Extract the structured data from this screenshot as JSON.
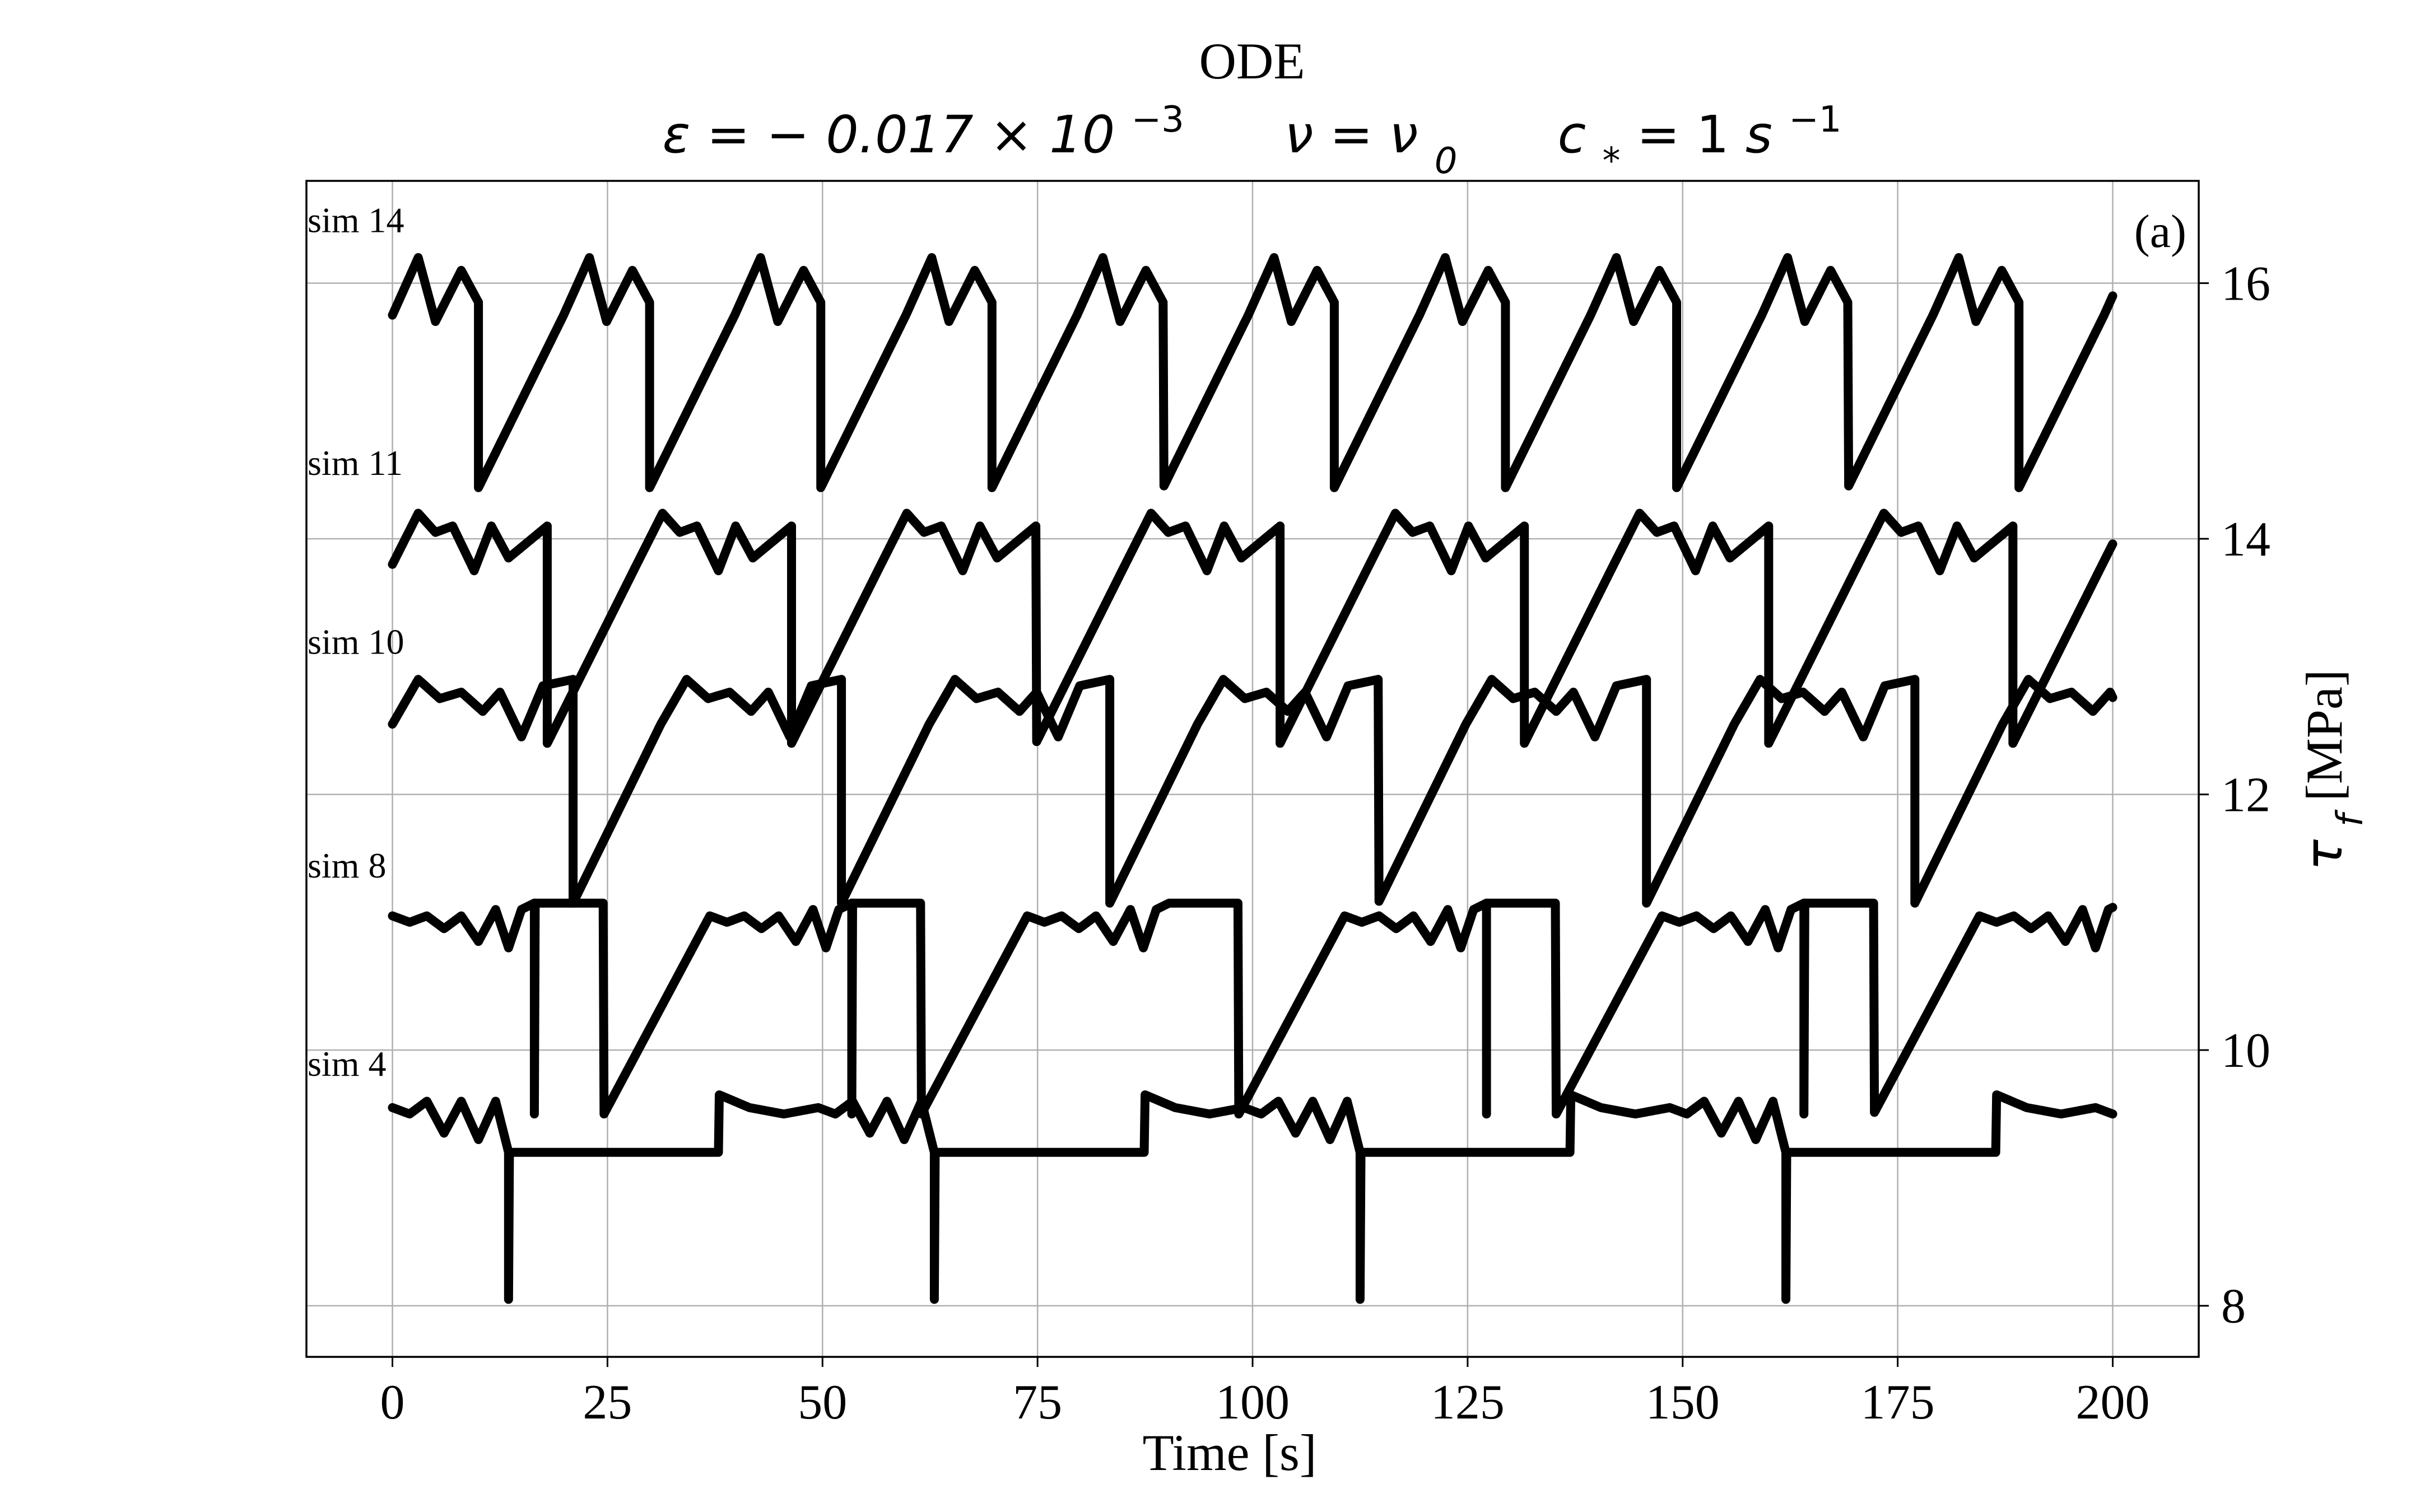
{
  "chart_data": {
    "type": "line",
    "title": "ODE",
    "subtitle": {
      "eps_main": "ε = − 0.017 × 10",
      "eps_exp": "−3",
      "nu_main": "ν = ν",
      "nu_sub": "0",
      "c_main": "c",
      "c_sub": "*",
      "c_rest": " = 1 ",
      "c_unit": "s",
      "c_exp": "−1"
    },
    "panel_label": "(a)",
    "xlabel": "Time [s]",
    "ylabel_symbol": "τ",
    "ylabel_sub": "f",
    "ylabel_unit": " [MPa]",
    "xlim": [
      -10,
      210
    ],
    "ylim": [
      7.6,
      16.8
    ],
    "xticks": [
      0,
      25,
      50,
      75,
      100,
      125,
      150,
      175,
      200
    ],
    "yticks": [
      8,
      10,
      12,
      14,
      16
    ],
    "y_axis_side": "right",
    "grid": true,
    "legend": "none",
    "line_color": "#000000",
    "series": [
      {
        "name": "sim 14",
        "period": 19.9,
        "x_start": 0,
        "x_end": 200,
        "events": [
          [
            -9.9,
            14.4
          ],
          [
            0,
            15.75
          ],
          [
            3,
            16.2
          ],
          [
            5,
            15.7
          ],
          [
            8,
            16.1
          ],
          [
            10,
            15.85
          ]
        ]
      },
      {
        "name": "sim 11",
        "period": 28.4,
        "x_start": 0,
        "x_end": 200,
        "events": [
          [
            -10.4,
            12.4
          ],
          [
            0,
            13.8
          ],
          [
            3,
            14.2
          ],
          [
            5,
            14.05
          ],
          [
            7,
            14.1
          ],
          [
            9.5,
            13.75
          ],
          [
            11.5,
            14.1
          ],
          [
            13.5,
            13.85
          ],
          [
            18,
            14.1
          ]
        ]
      },
      {
        "name": "sim 10",
        "period": 31.2,
        "x_start": 0,
        "x_end": 200,
        "events": [
          [
            -10.2,
            11.15
          ],
          [
            0,
            12.55
          ],
          [
            3,
            12.9
          ],
          [
            5.5,
            12.75
          ],
          [
            8,
            12.8
          ],
          [
            10.5,
            12.65
          ],
          [
            12.5,
            12.8
          ],
          [
            15,
            12.45
          ],
          [
            17.5,
            12.85
          ],
          [
            21,
            12.9
          ]
        ]
      },
      {
        "name": "sim 8",
        "period": 36.9,
        "x_start": 0,
        "x_end": 200,
        "events": [
          [
            -12.3,
            9.5
          ],
          [
            0,
            11.05
          ],
          [
            2,
            11.0
          ],
          [
            4,
            11.05
          ],
          [
            6,
            10.95
          ],
          [
            8,
            11.05
          ],
          [
            10,
            10.85
          ],
          [
            12,
            11.1
          ],
          [
            13.5,
            10.8
          ],
          [
            15,
            11.1
          ],
          [
            16.5,
            11.15
          ]
        ]
      },
      {
        "name": "sim 4",
        "period": 49.5,
        "x_start": 0,
        "x_end": 200,
        "events": [
          [
            -11.5,
            9.65
          ],
          [
            -8,
            9.55
          ],
          [
            -4,
            9.5
          ],
          [
            0,
            9.55
          ],
          [
            2,
            9.5
          ],
          [
            4,
            9.6
          ],
          [
            6,
            9.35
          ],
          [
            8,
            9.6
          ],
          [
            10,
            9.3
          ],
          [
            12,
            9.6
          ],
          [
            13.5,
            9.2
          ]
        ]
      }
    ],
    "series_label_x": 0,
    "series_label_y": [
      16.4,
      14.5,
      13.1,
      11.35,
      9.8
    ],
    "drop_targets": [
      14.4,
      12.4,
      11.15,
      9.5,
      8.05
    ]
  }
}
